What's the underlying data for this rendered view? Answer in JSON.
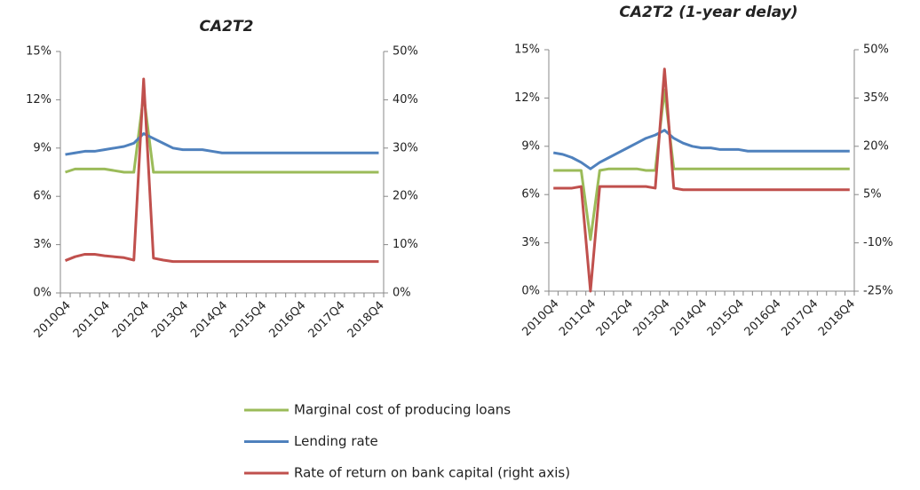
{
  "chart_data": [
    {
      "type": "line",
      "title": "CA2T2",
      "categories": [
        "2010Q4",
        null,
        null,
        null,
        "2011Q4",
        null,
        null,
        null,
        "2012Q4",
        null,
        null,
        null,
        "2013Q4",
        null,
        null,
        null,
        "2014Q4",
        null,
        null,
        null,
        "2015Q4",
        null,
        null,
        null,
        "2016Q4",
        null,
        null,
        null,
        "2017Q4",
        null,
        null,
        null,
        "2018Q4"
      ],
      "ylim": [
        0,
        15
      ],
      "yticks": [
        {
          "value": 0,
          "label": "0%"
        },
        {
          "value": 3,
          "label": "3%"
        },
        {
          "value": 6,
          "label": "6%"
        },
        {
          "value": 9,
          "label": "9%"
        },
        {
          "value": 12,
          "label": "12%"
        },
        {
          "value": 15,
          "label": "15%"
        }
      ],
      "y2lim": [
        0,
        50
      ],
      "y2ticks": [
        {
          "value": 0,
          "label": "0%"
        },
        {
          "value": 10,
          "label": "10%"
        },
        {
          "value": 20,
          "label": "20%"
        },
        {
          "value": 30,
          "label": "30%"
        },
        {
          "value": 40,
          "label": "40%"
        },
        {
          "value": 50,
          "label": "50%"
        }
      ],
      "grid": false,
      "series": [
        {
          "name": "Marginal cost of producing  loans",
          "color": "#9bbb59",
          "values": [
            7.5,
            7.7,
            7.7,
            7.7,
            7.7,
            7.6,
            7.5,
            7.5,
            12.3,
            7.5,
            7.5,
            7.5,
            7.5,
            7.5,
            7.5,
            7.5,
            7.5,
            7.5,
            7.5,
            7.5,
            7.5,
            7.5,
            7.5,
            7.5,
            7.5,
            7.5,
            7.5,
            7.5,
            7.5,
            7.5,
            7.5,
            7.5,
            7.5
          ]
        },
        {
          "name": "Lending rate",
          "color": "#4f81bd",
          "values": [
            8.6,
            8.7,
            8.8,
            8.8,
            8.9,
            9.0,
            9.1,
            9.3,
            9.9,
            9.6,
            9.3,
            9.0,
            8.9,
            8.9,
            8.9,
            8.8,
            8.7,
            8.7,
            8.7,
            8.7,
            8.7,
            8.7,
            8.7,
            8.7,
            8.7,
            8.7,
            8.7,
            8.7,
            8.7,
            8.7,
            8.7,
            8.7,
            8.7
          ]
        },
        {
          "name": "Rate of return on bank capital (right axis)",
          "color": "#c0504d",
          "axis": "y2",
          "values": [
            6.7,
            7.5,
            8.0,
            8.0,
            7.7,
            7.5,
            7.3,
            6.8,
            44.3,
            7.2,
            6.8,
            6.5,
            6.5,
            6.5,
            6.5,
            6.5,
            6.5,
            6.5,
            6.5,
            6.5,
            6.5,
            6.5,
            6.5,
            6.5,
            6.5,
            6.5,
            6.5,
            6.5,
            6.5,
            6.5,
            6.5,
            6.5,
            6.5
          ]
        }
      ]
    },
    {
      "type": "line",
      "title": "CA2T2 (1-year delay)",
      "categories": [
        "2010Q4",
        null,
        null,
        null,
        "2011Q4",
        null,
        null,
        null,
        "2012Q4",
        null,
        null,
        null,
        "2013Q4",
        null,
        null,
        null,
        "2014Q4",
        null,
        null,
        null,
        "2015Q4",
        null,
        null,
        null,
        "2016Q4",
        null,
        null,
        null,
        "2017Q4",
        null,
        null,
        null,
        "2018Q4"
      ],
      "ylim": [
        0,
        15
      ],
      "yticks": [
        {
          "value": 0,
          "label": "0%"
        },
        {
          "value": 3,
          "label": "3%"
        },
        {
          "value": 6,
          "label": "6%"
        },
        {
          "value": 9,
          "label": "9%"
        },
        {
          "value": 12,
          "label": "12%"
        },
        {
          "value": 15,
          "label": "15%"
        }
      ],
      "y2lim": [
        -25,
        50
      ],
      "y2ticks": [
        {
          "value": -25,
          "label": "-25%"
        },
        {
          "value": -10,
          "label": "-10%"
        },
        {
          "value": 5,
          "label": "5%"
        },
        {
          "value": 20,
          "label": "20%"
        },
        {
          "value": 35,
          "label": "35%"
        },
        {
          "value": 50,
          "label": "50%"
        }
      ],
      "grid": false,
      "series": [
        {
          "color": "#9bbb59",
          "values": [
            7.5,
            7.5,
            7.5,
            7.5,
            3.2,
            7.5,
            7.6,
            7.6,
            7.6,
            7.6,
            7.5,
            7.5,
            12.5,
            7.6,
            7.6,
            7.6,
            7.6,
            7.6,
            7.6,
            7.6,
            7.6,
            7.6,
            7.6,
            7.6,
            7.6,
            7.6,
            7.6,
            7.6,
            7.6,
            7.6,
            7.6,
            7.6,
            7.6
          ]
        },
        {
          "color": "#4f81bd",
          "values": [
            8.6,
            8.5,
            8.3,
            8.0,
            7.6,
            8.0,
            8.3,
            8.6,
            8.9,
            9.2,
            9.5,
            9.7,
            10.0,
            9.5,
            9.2,
            9.0,
            8.9,
            8.9,
            8.8,
            8.8,
            8.8,
            8.7,
            8.7,
            8.7,
            8.7,
            8.7,
            8.7,
            8.7,
            8.7,
            8.7,
            8.7,
            8.7,
            8.7
          ]
        },
        {
          "color": "#c0504d",
          "axis": "y2",
          "values": [
            7.0,
            7.0,
            7.0,
            7.5,
            -25,
            7.5,
            7.5,
            7.5,
            7.5,
            7.5,
            7.5,
            7.0,
            44.0,
            7.0,
            6.5,
            6.5,
            6.5,
            6.5,
            6.5,
            6.5,
            6.5,
            6.5,
            6.5,
            6.5,
            6.5,
            6.5,
            6.5,
            6.5,
            6.5,
            6.5,
            6.5,
            6.5,
            6.5
          ]
        }
      ]
    }
  ]
}
